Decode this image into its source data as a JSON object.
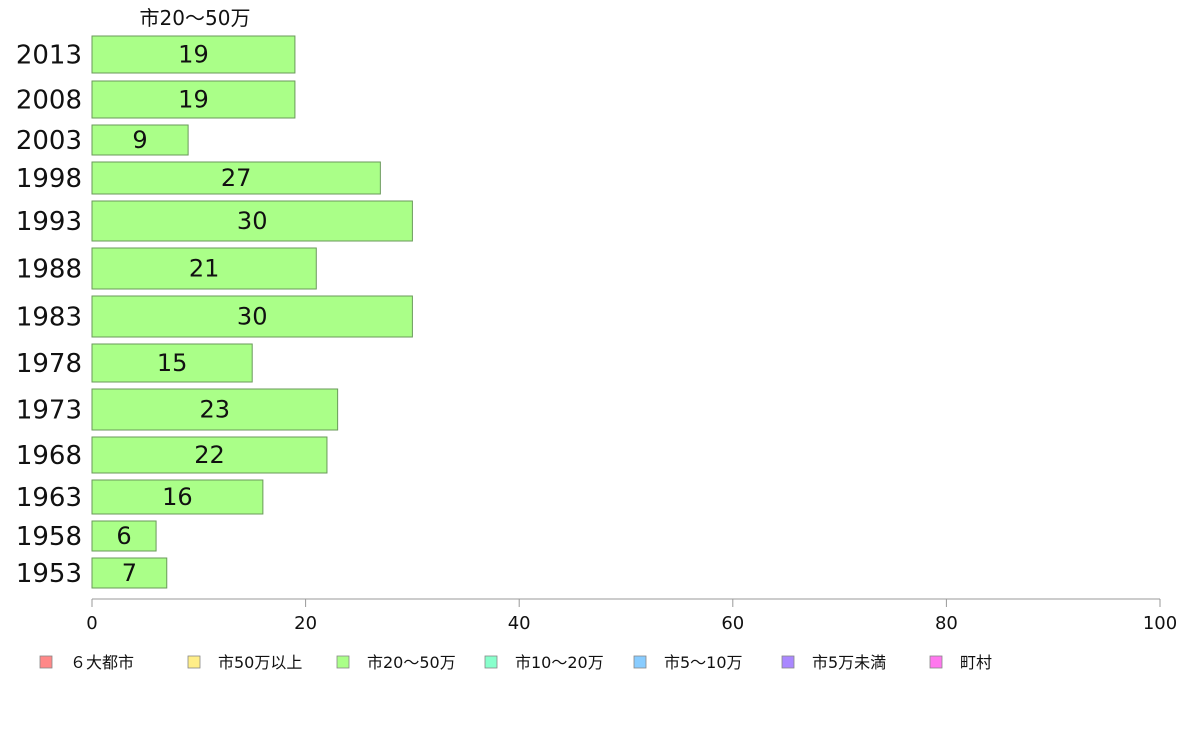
{
  "chart_data": {
    "type": "bar",
    "orientation": "horizontal",
    "column_title": "市20〜50万",
    "categories": [
      "2013",
      "2008",
      "2003",
      "1998",
      "1993",
      "1988",
      "1983",
      "1978",
      "1973",
      "1968",
      "1963",
      "1958",
      "1953"
    ],
    "series": [
      {
        "name": "市20〜50万",
        "color": "#aaff88",
        "values": [
          19,
          19,
          9,
          27,
          30,
          21,
          30,
          15,
          23,
          22,
          16,
          6,
          7
        ],
        "labels": [
          "19",
          "19",
          "9",
          "27",
          "30",
          "21",
          "30",
          "15",
          "23",
          "22",
          "16",
          "6",
          "7"
        ]
      }
    ],
    "xlim": [
      0,
      100
    ],
    "xticks": [
      "0",
      "20",
      "40",
      "60",
      "80",
      "100"
    ],
    "grid": false,
    "legend": {
      "placement": "bottom",
      "items": [
        {
          "label": "６大都市",
          "color": "#ff8888"
        },
        {
          "label": "市50万以上",
          "color": "#ffee88"
        },
        {
          "label": "市20〜50万",
          "color": "#aaff88"
        },
        {
          "label": "市10〜20万",
          "color": "#88ffcc"
        },
        {
          "label": "市5〜10万",
          "color": "#88ccff"
        },
        {
          "label": "市5万未満",
          "color": "#aa88ff"
        },
        {
          "label": "町村",
          "color": "#ff77ee"
        }
      ]
    }
  }
}
